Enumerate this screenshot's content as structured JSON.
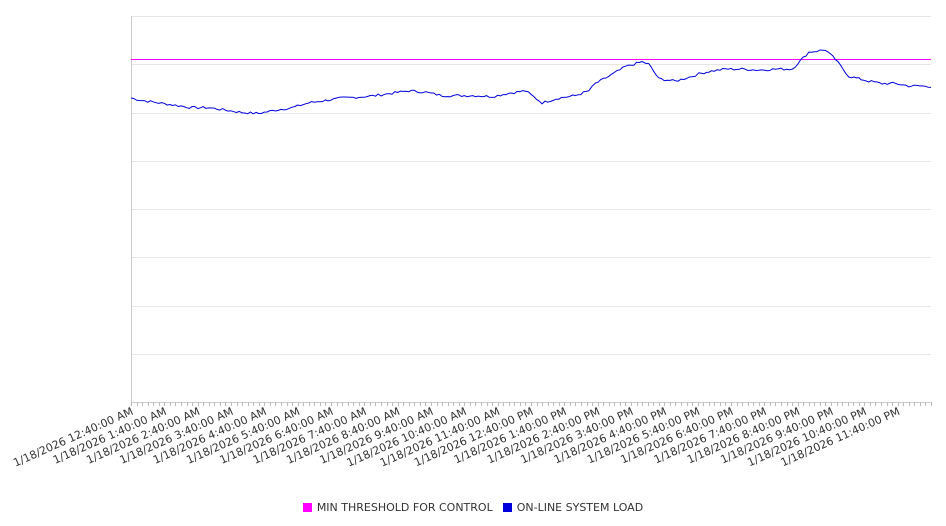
{
  "chart_data": {
    "type": "line",
    "title": "",
    "xlabel": "",
    "ylabel": "",
    "x_tick_labels": [
      "1/18/2026 12:40:00 AM",
      "1/18/2026 1:40:00 AM",
      "1/18/2026 2:40:00 AM",
      "1/18/2026 3:40:00 AM",
      "1/18/2026 4:40:00 AM",
      "1/18/2026 5:40:00 AM",
      "1/18/2026 6:40:00 AM",
      "1/18/2026 7:40:00 AM",
      "1/18/2026 8:40:00 AM",
      "1/18/2026 9:40:00 AM",
      "1/18/2026 10:40:00 AM",
      "1/18/2026 11:40:00 AM",
      "1/18/2026 12:40:00 PM",
      "1/18/2026 1:40:00 PM",
      "1/18/2026 2:40:00 PM",
      "1/18/2026 3:40:00 PM",
      "1/18/2026 4:40:00 PM",
      "1/18/2026 5:40:00 PM",
      "1/18/2026 6:40:00 PM",
      "1/18/2026 7:40:00 PM",
      "1/18/2026 8:40:00 PM",
      "1/18/2026 9:40:00 PM",
      "1/18/2026 10:40:00 PM",
      "1/18/2026 11:40:00 PM"
    ],
    "x_range_hours": [
      0.667,
      24.667
    ],
    "ylim": [
      0,
      8
    ],
    "grid": true,
    "legend_position": "bottom-center",
    "series": [
      {
        "name": "MIN THRESHOLD FOR CONTROL",
        "color": "#ff00ff",
        "style": "constant",
        "value": 7.1
      },
      {
        "name": "ON-LINE SYSTEM LOAD",
        "color": "#0000dd",
        "x_hours": [
          0.667,
          1.0,
          1.5,
          2.0,
          2.5,
          3.0,
          3.5,
          4.0,
          4.5,
          5.0,
          5.5,
          6.0,
          6.5,
          7.0,
          7.5,
          8.0,
          8.5,
          9.0,
          9.5,
          10.0,
          10.5,
          11.0,
          11.5,
          12.0,
          12.5,
          13.0,
          13.5,
          14.0,
          14.4,
          14.6,
          15.0,
          15.5,
          16.0,
          16.2,
          16.5,
          17.0,
          17.5,
          17.7,
          18.0,
          18.5,
          19.0,
          19.5,
          20.0,
          20.5,
          21.0,
          21.5,
          21.8,
          22.2,
          22.5,
          22.8,
          23.2,
          23.6,
          24.0,
          24.4,
          24.667
        ],
        "values": [
          6.3,
          6.25,
          6.2,
          6.15,
          6.1,
          6.1,
          6.05,
          6.0,
          5.98,
          6.05,
          6.1,
          6.2,
          6.25,
          6.3,
          6.32,
          6.35,
          6.4,
          6.45,
          6.42,
          6.35,
          6.35,
          6.35,
          6.33,
          6.4,
          6.45,
          6.2,
          6.3,
          6.35,
          6.45,
          6.6,
          6.75,
          6.95,
          7.05,
          7.0,
          6.7,
          6.65,
          6.75,
          6.8,
          6.85,
          6.9,
          6.9,
          6.88,
          6.9,
          6.9,
          7.25,
          7.3,
          7.1,
          6.75,
          6.7,
          6.65,
          6.6,
          6.6,
          6.55,
          6.55,
          6.52
        ]
      }
    ]
  }
}
